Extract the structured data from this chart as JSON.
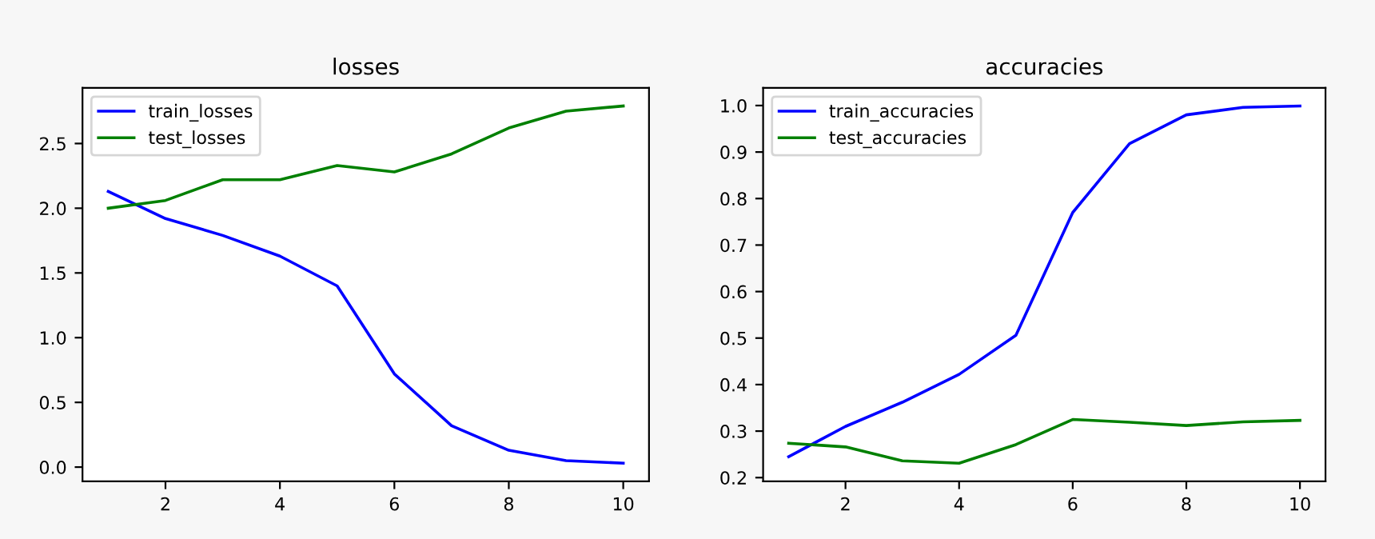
{
  "chart_data": [
    {
      "type": "line",
      "title": "losses",
      "x": [
        1,
        2,
        3,
        4,
        5,
        6,
        7,
        8,
        9,
        10
      ],
      "xlim": [
        0.55,
        10.45
      ],
      "xticks": [
        2,
        4,
        6,
        8,
        10
      ],
      "ylim": [
        -0.11,
        2.93
      ],
      "yticks": [
        {
          "value": 0,
          "label": "0.0"
        },
        0.5,
        {
          "value": 1,
          "label": "1.0"
        },
        1.5,
        {
          "value": 2,
          "label": "2.0"
        },
        2.5
      ],
      "legend": "top left",
      "grid": false,
      "series": [
        {
          "name": "train_losses",
          "color": "#0000ff",
          "values": [
            2.13,
            1.92,
            1.79,
            1.63,
            1.4,
            0.72,
            0.32,
            0.13,
            0.05,
            0.03
          ]
        },
        {
          "name": "test_losses",
          "color": "#008000",
          "values": [
            2.0,
            2.06,
            2.22,
            2.22,
            2.33,
            2.28,
            2.42,
            2.62,
            2.75,
            2.79
          ]
        }
      ]
    },
    {
      "type": "line",
      "title": "accuracies",
      "x": [
        1,
        2,
        3,
        4,
        5,
        6,
        7,
        8,
        9,
        10
      ],
      "xlim": [
        0.55,
        10.45
      ],
      "xticks": [
        2,
        4,
        6,
        8,
        10
      ],
      "ylim": [
        0.192,
        1.038
      ],
      "yticks": [
        0.2,
        0.3,
        0.4,
        0.5,
        0.6,
        0.7,
        0.8,
        0.9,
        {
          "value": 1,
          "label": "1.0"
        }
      ],
      "legend": "top left",
      "grid": false,
      "series": [
        {
          "name": "train_accuracies",
          "color": "#0000ff",
          "values": [
            0.245,
            0.31,
            0.362,
            0.422,
            0.506,
            0.77,
            0.918,
            0.98,
            0.996,
            0.999
          ]
        },
        {
          "name": "test_accuracies",
          "color": "#008000",
          "values": [
            0.274,
            0.266,
            0.236,
            0.231,
            0.271,
            0.325,
            0.319,
            0.312,
            0.32,
            0.323
          ]
        }
      ]
    }
  ]
}
